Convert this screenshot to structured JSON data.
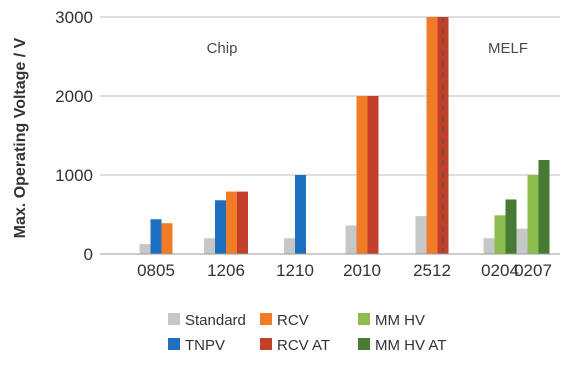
{
  "chart_data": {
    "type": "bar",
    "ylabel": "Max. Operating Voltage / V",
    "xlabel": "",
    "title": "",
    "ylim": [
      0,
      3000
    ],
    "yticks": [
      0,
      1000,
      2000,
      3000
    ],
    "grid": "horizontal",
    "legend_position": "bottom",
    "categories": [
      "0805",
      "1206",
      "1210",
      "2010",
      "2512",
      "0204",
      "0207"
    ],
    "groups": [
      {
        "label": "Chip",
        "categories": [
          "0805",
          "1206",
          "1210",
          "2010",
          "2512"
        ]
      },
      {
        "label": "MELF",
        "categories": [
          "0204",
          "0207"
        ]
      }
    ],
    "series": [
      {
        "name": "Standard",
        "color": "#c6c7c9",
        "values": [
          125,
          200,
          200,
          360,
          480,
          200,
          320
        ]
      },
      {
        "name": "TNPV",
        "color": "#1f6fc0",
        "values": [
          440,
          680,
          1000,
          null,
          null,
          null,
          null
        ]
      },
      {
        "name": "RCV",
        "color": "#f07c28",
        "values": [
          390,
          790,
          null,
          2000,
          3000,
          null,
          null
        ]
      },
      {
        "name": "RCV AT",
        "color": "#c2402a",
        "values": [
          null,
          790,
          null,
          2000,
          3000,
          null,
          null
        ]
      },
      {
        "name": "MM HV",
        "color": "#8ebd4e",
        "values": [
          null,
          null,
          null,
          null,
          null,
          490,
          1000
        ]
      },
      {
        "name": "MM HV AT",
        "color": "#467a35",
        "values": [
          null,
          null,
          null,
          null,
          null,
          690,
          1190
        ]
      }
    ],
    "legend_order": [
      "Standard",
      "RCV",
      "MM HV",
      "TNPV",
      "RCV AT",
      "MM HV AT"
    ]
  }
}
